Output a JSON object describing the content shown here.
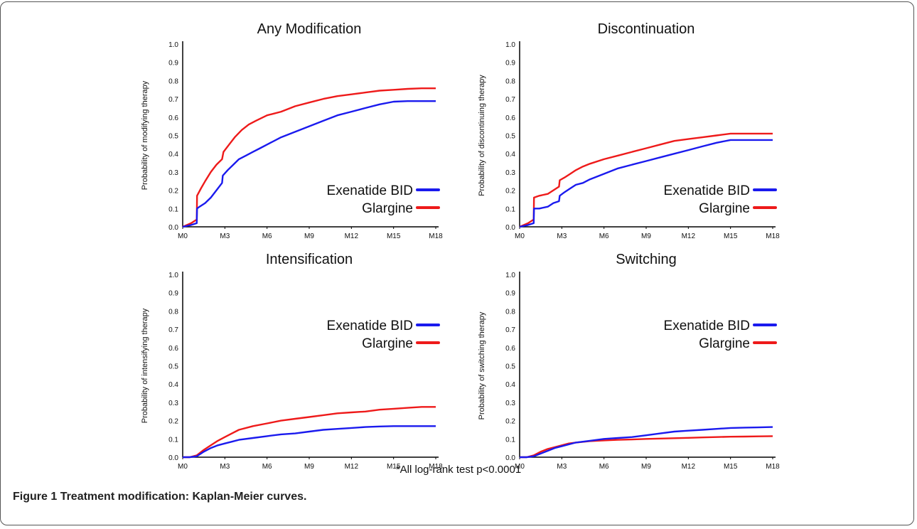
{
  "figure": {
    "footnote": "*All log-rank test p<0.0001",
    "caption_label": "Figure 1",
    "caption_text": "Treatment modification: Kaplan-Meier curves."
  },
  "colors": {
    "exenatide": "#1a1aee",
    "glargine": "#ee1a1a",
    "axis": "#000000"
  },
  "chart_data": [
    {
      "type": "line",
      "title": "Any Modification",
      "ylabel": "Probability of modifying therapy",
      "xticks": [
        "M0",
        "M3",
        "M6",
        "M9",
        "M12",
        "M15",
        "M18"
      ],
      "yticks": [
        "0.0",
        "0.1",
        "0.2",
        "0.3",
        "0.4",
        "0.5",
        "0.6",
        "0.7",
        "0.8",
        "0.9",
        "1.0"
      ],
      "xlim": [
        0,
        18
      ],
      "ylim": [
        0,
        1
      ],
      "legend": "right",
      "series": [
        {
          "name": "Exenatide BID",
          "color": "#1a1aee",
          "x": [
            0,
            0.6,
            1.0,
            1.02,
            1.2,
            1.6,
            2.0,
            2.4,
            2.8,
            2.85,
            3.2,
            3.6,
            4.0,
            4.5,
            5.0,
            5.5,
            6.0,
            7.0,
            8.0,
            9.0,
            10.0,
            11.0,
            12.0,
            13.0,
            14.0,
            15.0,
            16.0,
            17.0,
            18.0
          ],
          "y": [
            0,
            0.01,
            0.02,
            0.1,
            0.11,
            0.13,
            0.16,
            0.2,
            0.24,
            0.28,
            0.31,
            0.34,
            0.37,
            0.39,
            0.41,
            0.43,
            0.45,
            0.49,
            0.52,
            0.55,
            0.58,
            0.61,
            0.63,
            0.65,
            0.67,
            0.685,
            0.688,
            0.688,
            0.688
          ]
        },
        {
          "name": "Glargine",
          "color": "#ee1a1a",
          "x": [
            0,
            0.6,
            1.0,
            1.02,
            1.3,
            1.6,
            2.0,
            2.4,
            2.8,
            2.9,
            3.3,
            3.7,
            4.2,
            4.7,
            5.2,
            6.0,
            7.0,
            8.0,
            9.0,
            10.0,
            11.0,
            12.0,
            13.0,
            14.0,
            15.0,
            16.0,
            17.0,
            18.0
          ],
          "y": [
            0,
            0.02,
            0.04,
            0.17,
            0.21,
            0.25,
            0.3,
            0.34,
            0.37,
            0.41,
            0.45,
            0.49,
            0.53,
            0.56,
            0.58,
            0.61,
            0.63,
            0.66,
            0.68,
            0.7,
            0.715,
            0.725,
            0.735,
            0.745,
            0.75,
            0.755,
            0.758,
            0.758
          ]
        }
      ]
    },
    {
      "type": "line",
      "title": "Discontinuation",
      "ylabel": "Probability of discontinuing therapy",
      "xticks": [
        "M0",
        "M3",
        "M6",
        "M9",
        "M12",
        "M15",
        "M18"
      ],
      "yticks": [
        "0.0",
        "0.1",
        "0.2",
        "0.3",
        "0.4",
        "0.5",
        "0.6",
        "0.7",
        "0.8",
        "0.9",
        "1.0"
      ],
      "xlim": [
        0,
        18
      ],
      "ylim": [
        0,
        1
      ],
      "legend": "right",
      "series": [
        {
          "name": "Exenatide BID",
          "color": "#1a1aee",
          "x": [
            0,
            0.6,
            1.0,
            1.02,
            1.4,
            2.0,
            2.4,
            2.8,
            2.85,
            3.2,
            3.6,
            4.0,
            4.5,
            5.0,
            6.0,
            7.0,
            8.0,
            9.0,
            10.0,
            11.0,
            12.0,
            13.0,
            14.0,
            15.0,
            16.0,
            17.0,
            18.0
          ],
          "y": [
            0,
            0.01,
            0.02,
            0.1,
            0.1,
            0.11,
            0.13,
            0.14,
            0.17,
            0.19,
            0.21,
            0.23,
            0.24,
            0.26,
            0.29,
            0.32,
            0.34,
            0.36,
            0.38,
            0.4,
            0.42,
            0.44,
            0.46,
            0.475,
            0.475,
            0.475,
            0.475
          ]
        },
        {
          "name": "Glargine",
          "color": "#ee1a1a",
          "x": [
            0,
            0.6,
            1.0,
            1.02,
            1.4,
            2.0,
            2.4,
            2.8,
            2.85,
            3.2,
            3.6,
            4.0,
            4.5,
            5.0,
            6.0,
            7.0,
            8.0,
            9.0,
            10.0,
            11.0,
            12.0,
            13.0,
            14.0,
            15.0,
            16.0,
            17.0,
            18.0
          ],
          "y": [
            0,
            0.02,
            0.04,
            0.16,
            0.17,
            0.18,
            0.2,
            0.22,
            0.255,
            0.27,
            0.29,
            0.31,
            0.33,
            0.345,
            0.37,
            0.39,
            0.41,
            0.43,
            0.45,
            0.47,
            0.48,
            0.49,
            0.5,
            0.51,
            0.51,
            0.51,
            0.51
          ]
        }
      ]
    },
    {
      "type": "line",
      "title": "Intensification",
      "ylabel": "Probability of intensifying therapy",
      "xticks": [
        "M0",
        "M3",
        "M6",
        "M9",
        "M12",
        "M15",
        "M18"
      ],
      "yticks": [
        "0.0",
        "0.1",
        "0.2",
        "0.3",
        "0.4",
        "0.5",
        "0.6",
        "0.7",
        "0.8",
        "0.9",
        "1.0"
      ],
      "xlim": [
        0,
        18
      ],
      "ylim": [
        0,
        1
      ],
      "legend": "upper-right",
      "series": [
        {
          "name": "Exenatide BID",
          "color": "#1a1aee",
          "x": [
            0,
            0.5,
            1.0,
            1.5,
            2.0,
            2.5,
            3.0,
            3.5,
            4.0,
            5.0,
            6.0,
            7.0,
            8.0,
            9.0,
            10.0,
            11.0,
            12.0,
            13.0,
            14.0,
            15.0,
            16.0,
            17.0,
            18.0
          ],
          "y": [
            0,
            0.0,
            0.005,
            0.03,
            0.05,
            0.065,
            0.075,
            0.085,
            0.095,
            0.105,
            0.115,
            0.125,
            0.13,
            0.14,
            0.15,
            0.155,
            0.16,
            0.165,
            0.168,
            0.17,
            0.17,
            0.17,
            0.17
          ]
        },
        {
          "name": "Glargine",
          "color": "#ee1a1a",
          "x": [
            0,
            0.5,
            1.0,
            1.5,
            2.0,
            2.5,
            3.0,
            3.5,
            4.0,
            5.0,
            6.0,
            7.0,
            8.0,
            9.0,
            10.0,
            11.0,
            12.0,
            13.0,
            14.0,
            15.0,
            16.0,
            17.0,
            18.0
          ],
          "y": [
            0,
            0.0,
            0.01,
            0.04,
            0.065,
            0.09,
            0.11,
            0.13,
            0.15,
            0.17,
            0.185,
            0.2,
            0.21,
            0.22,
            0.23,
            0.24,
            0.245,
            0.25,
            0.26,
            0.265,
            0.27,
            0.275,
            0.275
          ]
        }
      ]
    },
    {
      "type": "line",
      "title": "Switching",
      "ylabel": "Probability of switching therapy",
      "xticks": [
        "M0",
        "M3",
        "M6",
        "M9",
        "M12",
        "M15",
        "M18"
      ],
      "yticks": [
        "0.0",
        "0.1",
        "0.2",
        "0.3",
        "0.4",
        "0.5",
        "0.6",
        "0.7",
        "0.8",
        "0.9",
        "1.0"
      ],
      "xlim": [
        0,
        18
      ],
      "ylim": [
        0,
        1
      ],
      "legend": "upper-right",
      "series": [
        {
          "name": "Exenatide BID",
          "color": "#1a1aee",
          "x": [
            0,
            0.5,
            1.0,
            1.5,
            2.0,
            2.5,
            3.0,
            3.5,
            4.0,
            5.0,
            6.0,
            7.0,
            8.0,
            9.0,
            10.0,
            11.0,
            12.0,
            13.0,
            14.0,
            15.0,
            16.0,
            17.0,
            18.0
          ],
          "y": [
            0,
            0.0,
            0.005,
            0.02,
            0.035,
            0.05,
            0.06,
            0.07,
            0.08,
            0.09,
            0.1,
            0.105,
            0.11,
            0.12,
            0.13,
            0.14,
            0.145,
            0.15,
            0.155,
            0.16,
            0.162,
            0.163,
            0.165
          ]
        },
        {
          "name": "Glargine",
          "color": "#ee1a1a",
          "x": [
            0,
            0.5,
            1.0,
            1.5,
            2.0,
            2.5,
            3.0,
            3.5,
            4.0,
            5.0,
            6.0,
            7.0,
            8.0,
            9.0,
            10.0,
            11.0,
            12.0,
            13.0,
            14.0,
            15.0,
            16.0,
            17.0,
            18.0
          ],
          "y": [
            0,
            0.0,
            0.01,
            0.03,
            0.045,
            0.055,
            0.065,
            0.075,
            0.08,
            0.088,
            0.092,
            0.095,
            0.097,
            0.1,
            0.102,
            0.104,
            0.106,
            0.108,
            0.11,
            0.112,
            0.113,
            0.114,
            0.115
          ]
        }
      ]
    }
  ]
}
